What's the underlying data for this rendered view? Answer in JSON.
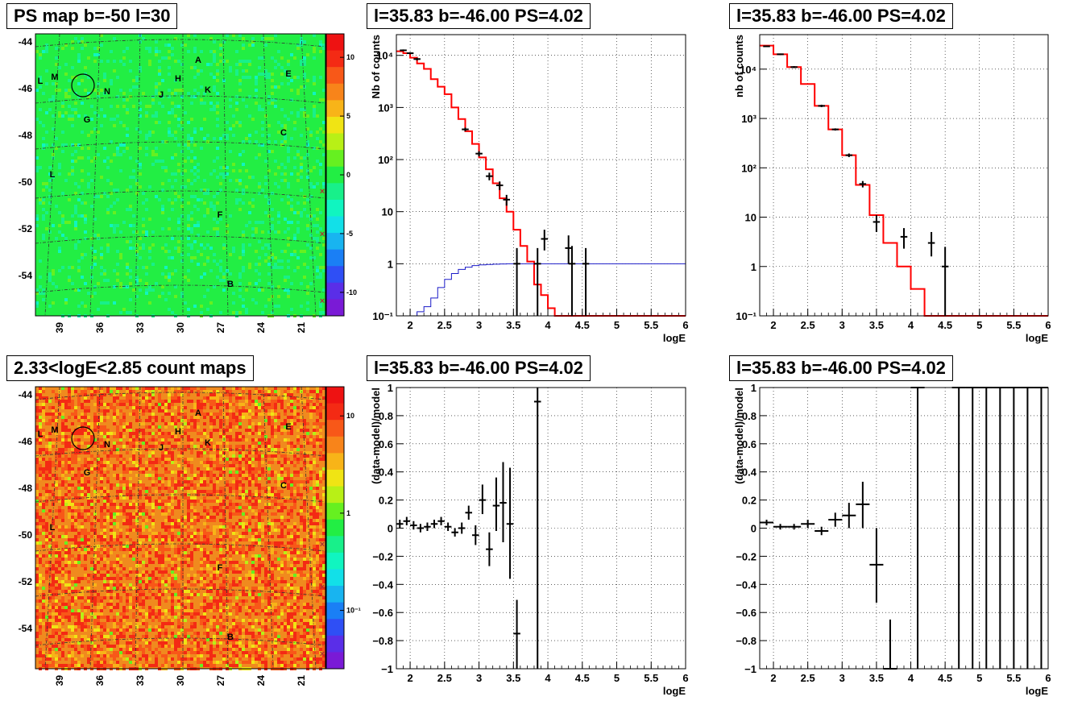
{
  "panels": {
    "ps_map": {
      "title": "PS map b=-50 l=30",
      "colorbar_ticks": [
        "10",
        "5",
        "0",
        "-5",
        "-10"
      ],
      "colorbar_values": [
        10,
        5,
        0,
        -5,
        -10
      ],
      "colorbar_range": [
        -12,
        12
      ]
    },
    "count_map": {
      "title": "2.33<logE<2.85 count maps",
      "colorbar_ticks": [
        "10",
        "1",
        "10⁻¹"
      ],
      "colorbar_log_values": [
        1,
        0,
        -1
      ],
      "colorbar_log_range": [
        -1.6,
        1.3
      ]
    },
    "spectrum_1": {
      "title": "l=35.83 b=-46.00 PS=4.02",
      "ylabel": "Nb of counts",
      "xlabel": "logE"
    },
    "spectrum_2": {
      "title": "l=35.83 b=-46.00 PS=4.02",
      "ylabel": "nb of counts",
      "xlabel": "logE"
    },
    "residual_1": {
      "title": "l=35.83 b=-46.00 PS=4.02",
      "ylabel": "(data-model)/model",
      "xlabel": "logE"
    },
    "residual_2": {
      "title": "l=35.83 b=-46.00 PS=4.02",
      "ylabel": "(data-model)/model",
      "xlabel": "logE"
    }
  },
  "maps": {
    "lat_ticks": [
      "-44",
      "-46",
      "-48",
      "-50",
      "-52",
      "-54"
    ],
    "lon_ticks": [
      "39",
      "36",
      "33",
      "30",
      "27",
      "24",
      "21"
    ],
    "source_labels": [
      "A",
      "B",
      "C",
      "E",
      "F",
      "G",
      "H",
      "J",
      "K",
      "L",
      "L",
      "M",
      "N"
    ],
    "colors": {
      "ps_background": "#22ee44",
      "count_background": "#f08a1e",
      "palette": [
        "#7a1ad6",
        "#5a2ee8",
        "#2f4ff5",
        "#1a7ff5",
        "#18b4f0",
        "#12e0e8",
        "#10f5c0",
        "#18f08a",
        "#22ee44",
        "#66f020",
        "#b8f016",
        "#f0e414",
        "#f8b418",
        "#f8841a",
        "#f85818",
        "#f42a14",
        "#ee1212"
      ]
    }
  },
  "chart_data": [
    {
      "type": "line",
      "panel": "spectrum_1",
      "title": "l=35.83 b=-46.00 PS=4.02",
      "xlabel": "logE",
      "ylabel": "Nb of counts",
      "xlim": [
        1.8,
        6.0
      ],
      "ylim": [
        0.1,
        25000
      ],
      "yscale": "log",
      "grid": true,
      "x_ticks": [
        2,
        2.5,
        3,
        3.5,
        4,
        4.5,
        5,
        5.5,
        6
      ],
      "x_tick_labels": [
        "2",
        "2.5",
        "3",
        "3.5",
        "4",
        "4.5",
        "5",
        "5.5",
        "6"
      ],
      "y_ticks": [
        0.1,
        1,
        10,
        100,
        1000,
        10000
      ],
      "y_tick_labels": [
        "10⁻¹",
        "1",
        "10",
        "10²",
        "10³",
        "10⁴"
      ],
      "series": [
        {
          "kind": "step",
          "color": "#ff0000",
          "edges": [
            1.8,
            1.9,
            2.0,
            2.1,
            2.2,
            2.3,
            2.4,
            2.5,
            2.6,
            2.7,
            2.8,
            2.9,
            3.0,
            3.1,
            3.2,
            3.3,
            3.4,
            3.5,
            3.6,
            3.7,
            3.8,
            3.9,
            4.0,
            4.1,
            4.2,
            4.3,
            4.4,
            4.5,
            4.6,
            4.7,
            4.8,
            4.9,
            5.0,
            5.1,
            5.2,
            5.3,
            5.4,
            5.5,
            5.6,
            5.7,
            5.8,
            5.9,
            6.0
          ],
          "values": [
            12000,
            11000,
            9000,
            7000,
            5500,
            3500,
            2500,
            1800,
            1000,
            600,
            350,
            200,
            110,
            65,
            35,
            18,
            10,
            4.5,
            2.2,
            1.1,
            0.4,
            0.25,
            0.14,
            0.1,
            0.1,
            0.1,
            0.1,
            0.1,
            0.1,
            0.1,
            0.1,
            0.1,
            0.1,
            0.1,
            0.1,
            0.1,
            0.1,
            0.1,
            0.1,
            0.1,
            0.1,
            0.1
          ]
        },
        {
          "kind": "step",
          "color": "#1a1ac8",
          "edges": [
            2.0,
            2.1,
            2.2,
            2.3,
            2.4,
            2.5,
            2.6,
            2.7,
            2.8,
            2.9,
            3.0,
            3.1,
            3.2,
            3.3,
            3.4,
            3.5,
            3.6,
            6.0
          ],
          "values": [
            0.1,
            0.12,
            0.15,
            0.22,
            0.35,
            0.5,
            0.65,
            0.78,
            0.86,
            0.92,
            0.95,
            0.97,
            0.98,
            0.99,
            1.0,
            1.0,
            1.0
          ]
        },
        {
          "kind": "errorbars",
          "color": "#000000",
          "points": [
            {
              "x": 1.9,
              "y": 12500,
              "lo": 12000,
              "hi": 13000
            },
            {
              "x": 2.0,
              "y": 11000,
              "lo": 10500,
              "hi": 11500
            },
            {
              "x": 2.1,
              "y": 8500,
              "lo": 8000,
              "hi": 9000
            },
            {
              "x": 2.8,
              "y": 380,
              "lo": 350,
              "hi": 410
            },
            {
              "x": 3.0,
              "y": 130,
              "lo": 115,
              "hi": 145
            },
            {
              "x": 3.15,
              "y": 48,
              "lo": 40,
              "hi": 56
            },
            {
              "x": 3.3,
              "y": 32,
              "lo": 26,
              "hi": 38
            },
            {
              "x": 3.4,
              "y": 17,
              "lo": 13,
              "hi": 21
            },
            {
              "x": 3.55,
              "y": 1,
              "lo": 0.1,
              "hi": 2
            },
            {
              "x": 3.85,
              "y": 1,
              "lo": 0.1,
              "hi": 2
            },
            {
              "x": 3.95,
              "y": 3,
              "lo": 1.8,
              "hi": 4.5
            },
            {
              "x": 4.3,
              "y": 2,
              "lo": 1,
              "hi": 3.5
            },
            {
              "x": 4.35,
              "y": 1,
              "lo": 0.1,
              "hi": 2.2
            },
            {
              "x": 4.55,
              "y": 1,
              "lo": 0.1,
              "hi": 2
            }
          ]
        }
      ]
    },
    {
      "type": "line",
      "panel": "spectrum_2",
      "title": "l=35.83 b=-46.00 PS=4.02",
      "xlabel": "logE",
      "ylabel": "nb of counts",
      "xlim": [
        1.8,
        6.0
      ],
      "ylim": [
        0.1,
        50000
      ],
      "yscale": "log",
      "grid": true,
      "x_ticks": [
        2,
        2.5,
        3,
        3.5,
        4,
        4.5,
        5,
        5.5,
        6
      ],
      "x_tick_labels": [
        "2",
        "2.5",
        "3",
        "3.5",
        "4",
        "4.5",
        "5",
        "5.5",
        "6"
      ],
      "y_ticks": [
        0.1,
        1,
        10,
        100,
        1000,
        10000
      ],
      "y_tick_labels": [
        "10⁻¹",
        "1",
        "10",
        "10²",
        "10³",
        "10⁴"
      ],
      "series": [
        {
          "kind": "step",
          "color": "#ff0000",
          "edges": [
            1.8,
            2.0,
            2.2,
            2.4,
            2.6,
            2.8,
            3.0,
            3.2,
            3.4,
            3.6,
            3.8,
            4.0,
            4.2,
            6.0
          ],
          "values": [
            30000,
            20000,
            11000,
            5000,
            1800,
            600,
            180,
            45,
            11,
            3,
            1,
            0.35,
            0.1
          ]
        },
        {
          "kind": "errorbars",
          "color": "#000000",
          "points": [
            {
              "x": 1.9,
              "y": 29000,
              "lo": 28000,
              "hi": 30000
            },
            {
              "x": 2.1,
              "y": 20000,
              "lo": 19300,
              "hi": 20700
            },
            {
              "x": 2.3,
              "y": 11000,
              "lo": 10500,
              "hi": 11500
            },
            {
              "x": 2.7,
              "y": 1800,
              "lo": 1700,
              "hi": 1900
            },
            {
              "x": 2.9,
              "y": 600,
              "lo": 570,
              "hi": 630
            },
            {
              "x": 3.1,
              "y": 180,
              "lo": 165,
              "hi": 195
            },
            {
              "x": 3.3,
              "y": 47,
              "lo": 40,
              "hi": 54
            },
            {
              "x": 3.5,
              "y": 8,
              "lo": 5,
              "hi": 11
            },
            {
              "x": 3.9,
              "y": 4,
              "lo": 2.3,
              "hi": 6
            },
            {
              "x": 4.3,
              "y": 3,
              "lo": 1.6,
              "hi": 5
            },
            {
              "x": 4.5,
              "y": 1,
              "lo": 0.1,
              "hi": 2.5
            }
          ]
        }
      ]
    },
    {
      "type": "scatter",
      "panel": "residual_1",
      "title": "l=35.83 b=-46.00 PS=4.02",
      "xlabel": "logE",
      "ylabel": "(data-model)/model",
      "xlim": [
        1.8,
        6.0
      ],
      "ylim": [
        -1,
        1
      ],
      "grid": true,
      "x_ticks": [
        2,
        2.5,
        3,
        3.5,
        4,
        4.5,
        5,
        5.5,
        6
      ],
      "x_tick_labels": [
        "2",
        "2.5",
        "3",
        "3.5",
        "4",
        "4.5",
        "5",
        "5.5",
        "6"
      ],
      "y_ticks": [
        -1,
        -0.8,
        -0.6,
        -0.4,
        -0.2,
        0,
        0.2,
        0.4,
        0.6,
        0.8,
        1
      ],
      "y_tick_labels": [
        "−1",
        "−0.8",
        "−0.6",
        "−0.4",
        "−0.2",
        "0",
        "0.2",
        "0.4",
        "0.6",
        "0.8",
        "1"
      ],
      "series": [
        {
          "kind": "errorbars",
          "color": "#000000",
          "halfwidth": 0.05,
          "points": [
            {
              "x": 1.85,
              "y": 0.03,
              "lo": 0.0,
              "hi": 0.06
            },
            {
              "x": 1.95,
              "y": 0.05,
              "lo": 0.02,
              "hi": 0.08
            },
            {
              "x": 2.05,
              "y": 0.02,
              "lo": -0.01,
              "hi": 0.05
            },
            {
              "x": 2.15,
              "y": 0.0,
              "lo": -0.03,
              "hi": 0.03
            },
            {
              "x": 2.25,
              "y": 0.01,
              "lo": -0.02,
              "hi": 0.04
            },
            {
              "x": 2.35,
              "y": 0.03,
              "lo": 0.0,
              "hi": 0.06
            },
            {
              "x": 2.45,
              "y": 0.05,
              "lo": 0.02,
              "hi": 0.08
            },
            {
              "x": 2.55,
              "y": 0.01,
              "lo": -0.02,
              "hi": 0.04
            },
            {
              "x": 2.65,
              "y": -0.03,
              "lo": -0.06,
              "hi": 0.0
            },
            {
              "x": 2.75,
              "y": 0.0,
              "lo": -0.04,
              "hi": 0.04
            },
            {
              "x": 2.85,
              "y": 0.11,
              "lo": 0.06,
              "hi": 0.16
            },
            {
              "x": 2.95,
              "y": -0.05,
              "lo": -0.12,
              "hi": 0.02
            },
            {
              "x": 3.05,
              "y": 0.2,
              "lo": 0.1,
              "hi": 0.31
            },
            {
              "x": 3.15,
              "y": -0.15,
              "lo": -0.27,
              "hi": -0.03
            },
            {
              "x": 3.25,
              "y": 0.16,
              "lo": -0.02,
              "hi": 0.36
            },
            {
              "x": 3.35,
              "y": 0.18,
              "lo": -0.1,
              "hi": 0.47
            },
            {
              "x": 3.45,
              "y": 0.03,
              "lo": -0.36,
              "hi": 0.43
            },
            {
              "x": 3.55,
              "y": -0.75,
              "lo": -1,
              "hi": -0.51
            },
            {
              "x": 3.85,
              "y": 0.9,
              "lo": -1,
              "hi": 1
            }
          ]
        }
      ]
    },
    {
      "type": "scatter",
      "panel": "residual_2",
      "title": "l=35.83 b=-46.00 PS=4.02",
      "xlabel": "logE",
      "ylabel": "(data-model)/model",
      "xlim": [
        1.8,
        6.0
      ],
      "ylim": [
        -1,
        1
      ],
      "grid": true,
      "x_ticks": [
        2,
        2.5,
        3,
        3.5,
        4,
        4.5,
        5,
        5.5,
        6
      ],
      "x_tick_labels": [
        "2",
        "2.5",
        "3",
        "3.5",
        "4",
        "4.5",
        "5",
        "5.5",
        "6"
      ],
      "y_ticks": [
        -1,
        -0.8,
        -0.6,
        -0.4,
        -0.2,
        0,
        0.2,
        0.4,
        0.6,
        0.8,
        1
      ],
      "y_tick_labels": [
        "−1",
        "−0.8",
        "−0.6",
        "−0.4",
        "−0.2",
        "0",
        "0.2",
        "0.4",
        "0.6",
        "0.8",
        "1"
      ],
      "series": [
        {
          "kind": "errorbars",
          "color": "#000000",
          "halfwidth": 0.1,
          "points": [
            {
              "x": 1.9,
              "y": 0.04,
              "lo": 0.02,
              "hi": 0.06
            },
            {
              "x": 2.1,
              "y": 0.01,
              "lo": -0.01,
              "hi": 0.03
            },
            {
              "x": 2.3,
              "y": 0.01,
              "lo": -0.01,
              "hi": 0.03
            },
            {
              "x": 2.5,
              "y": 0.03,
              "lo": 0.0,
              "hi": 0.06
            },
            {
              "x": 2.7,
              "y": -0.02,
              "lo": -0.05,
              "hi": 0.01
            },
            {
              "x": 2.9,
              "y": 0.06,
              "lo": 0.01,
              "hi": 0.11
            },
            {
              "x": 3.1,
              "y": 0.09,
              "lo": 0.0,
              "hi": 0.18
            },
            {
              "x": 3.3,
              "y": 0.17,
              "lo": 0.0,
              "hi": 0.33
            },
            {
              "x": 3.5,
              "y": -0.26,
              "lo": -0.53,
              "hi": 0.0
            },
            {
              "x": 3.7,
              "y": -1,
              "lo": -1,
              "hi": -0.65
            },
            {
              "x": 4.1,
              "y": 1,
              "lo": -1,
              "hi": 1
            },
            {
              "x": 4.7,
              "y": 1,
              "lo": -1,
              "hi": 1
            },
            {
              "x": 4.9,
              "y": 1,
              "lo": -1,
              "hi": 1
            },
            {
              "x": 5.1,
              "y": 1,
              "lo": -1,
              "hi": 1
            },
            {
              "x": 5.3,
              "y": 1,
              "lo": -1,
              "hi": 1
            },
            {
              "x": 5.5,
              "y": 1,
              "lo": -1,
              "hi": 1
            },
            {
              "x": 5.7,
              "y": 1,
              "lo": -1,
              "hi": 1
            },
            {
              "x": 5.9,
              "y": 1,
              "lo": -1,
              "hi": 1
            }
          ]
        }
      ]
    }
  ]
}
